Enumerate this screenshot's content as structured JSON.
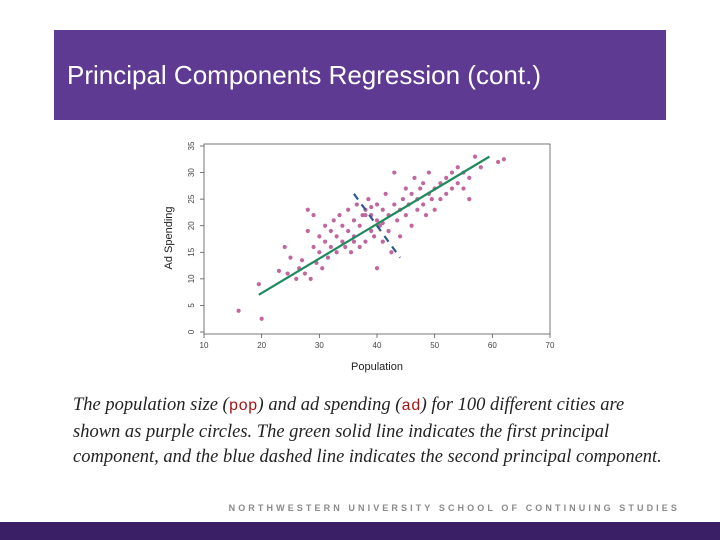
{
  "slide": {
    "title": "Principal Components Regression (cont.)",
    "footer": "NORTHWESTERN UNIVERSITY SCHOOL OF CONTINUING STUDIES",
    "caption": {
      "p1": "The population size (",
      "code1": "pop",
      "p2": ") and ad spending (",
      "code2": "ad",
      "p3": ") for 100 different cities are shown as purple circles. The green solid line indicates the first principal component, and the blue dashed line indicates the second principal component."
    },
    "colors": {
      "title_bar": "#5f3a93",
      "footer_bar": "#3b1f66",
      "points": "#c0679e",
      "first_pc": "#1f8a5e",
      "second_pc": "#2f5a8c"
    }
  },
  "chart_data": {
    "type": "scatter",
    "xlabel": "Population",
    "ylabel": "Ad Spending",
    "xlim": [
      10,
      70
    ],
    "ylim": [
      0,
      35
    ],
    "xticks": [
      10,
      20,
      30,
      40,
      50,
      60,
      70
    ],
    "yticks": [
      0,
      5,
      10,
      15,
      20,
      25,
      30,
      35
    ],
    "grid": false,
    "points": [
      [
        16,
        4
      ],
      [
        19.5,
        9
      ],
      [
        20,
        2.5
      ],
      [
        23,
        11.5
      ],
      [
        24,
        16
      ],
      [
        24.5,
        11
      ],
      [
        25,
        14
      ],
      [
        26,
        10
      ],
      [
        26.5,
        12
      ],
      [
        27,
        13.5
      ],
      [
        27.5,
        11
      ],
      [
        28,
        23
      ],
      [
        28,
        19
      ],
      [
        28.5,
        10
      ],
      [
        29,
        22
      ],
      [
        29,
        16
      ],
      [
        29.5,
        13
      ],
      [
        30,
        18
      ],
      [
        30,
        15
      ],
      [
        30.5,
        12
      ],
      [
        31,
        20
      ],
      [
        31,
        17
      ],
      [
        31.5,
        14
      ],
      [
        32,
        19
      ],
      [
        32,
        16
      ],
      [
        32.5,
        21
      ],
      [
        33,
        18
      ],
      [
        33,
        15
      ],
      [
        33.5,
        22
      ],
      [
        34,
        17
      ],
      [
        34,
        20
      ],
      [
        34.5,
        16
      ],
      [
        35,
        23
      ],
      [
        35,
        19
      ],
      [
        35.5,
        15
      ],
      [
        36,
        21
      ],
      [
        36,
        18
      ],
      [
        36.5,
        24
      ],
      [
        37,
        16
      ],
      [
        37,
        20
      ],
      [
        37.5,
        22
      ],
      [
        38,
        17
      ],
      [
        38,
        23
      ],
      [
        38.5,
        25
      ],
      [
        39,
        19
      ],
      [
        39,
        22
      ],
      [
        39.5,
        18
      ],
      [
        40,
        24
      ],
      [
        40,
        21
      ],
      [
        40,
        12
      ],
      [
        40.5,
        20
      ],
      [
        41,
        23
      ],
      [
        41,
        17
      ],
      [
        41.5,
        26
      ],
      [
        42,
        22
      ],
      [
        42,
        19
      ],
      [
        42.5,
        15
      ],
      [
        43,
        24
      ],
      [
        43,
        30
      ],
      [
        43.5,
        21
      ],
      [
        44,
        23
      ],
      [
        44,
        18
      ],
      [
        44.5,
        25
      ],
      [
        45,
        27
      ],
      [
        45,
        22
      ],
      [
        45.5,
        24
      ],
      [
        46,
        26
      ],
      [
        46,
        20
      ],
      [
        46.5,
        29
      ],
      [
        47,
        23
      ],
      [
        47,
        25
      ],
      [
        47.5,
        27
      ],
      [
        48,
        28
      ],
      [
        48,
        24
      ],
      [
        48.5,
        22
      ],
      [
        49,
        26
      ],
      [
        49,
        30
      ],
      [
        49.5,
        25
      ],
      [
        50,
        27
      ],
      [
        50,
        23
      ],
      [
        51,
        28
      ],
      [
        51,
        25
      ],
      [
        52,
        29
      ],
      [
        52,
        26
      ],
      [
        53,
        30
      ],
      [
        53,
        27
      ],
      [
        54,
        28
      ],
      [
        54,
        31
      ],
      [
        55,
        27
      ],
      [
        55,
        30
      ],
      [
        56,
        25
      ],
      [
        56,
        29
      ],
      [
        57,
        33
      ],
      [
        58,
        31
      ],
      [
        61,
        32
      ],
      [
        62,
        32.5
      ],
      [
        38,
        22
      ],
      [
        39,
        23.5
      ],
      [
        36,
        17
      ],
      [
        41,
        20.5
      ]
    ],
    "first_pc": {
      "x": [
        19.5,
        59.5
      ],
      "y": [
        7,
        33
      ]
    },
    "second_pc": {
      "x": [
        36,
        44
      ],
      "y": [
        26,
        14
      ]
    }
  }
}
